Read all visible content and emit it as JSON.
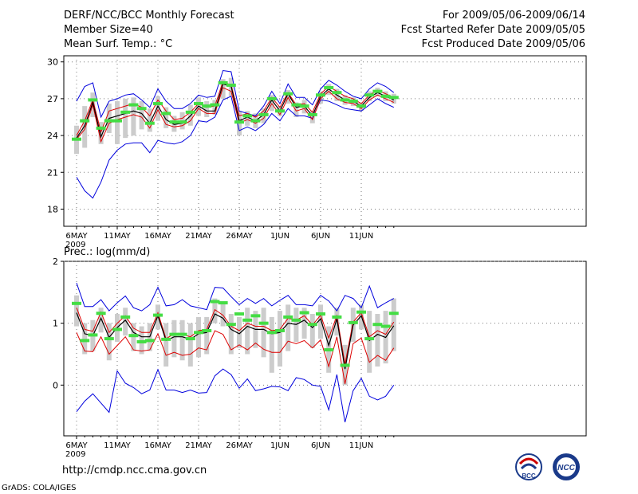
{
  "header": {
    "title": "DERF/NCC/BCC Monthly Forecast",
    "member_size": "Member Size=40",
    "variable": "Mean Surf. Temp.: °C",
    "period": "For 2009/05/06-2009/06/14",
    "started": "Fcst Started Refer Date 2009/05/05",
    "produced": "Fcst Produced Date 2009/05/06"
  },
  "lower_label": "Prec.: log(mm/d)",
  "footer": {
    "url": "http://cmdp.ncc.cma.gov.cn",
    "credit": "GrADS: COLA/IGES",
    "logo_bcc": "BCC",
    "logo_ncc": "NCC"
  },
  "colors": {
    "box": "#cccccc",
    "median": "#44dd44",
    "mean": "#000000",
    "spread": "#dd0000",
    "extreme": "#0000dd"
  },
  "chart_data": [
    {
      "type": "line",
      "title": "Mean Surf. Temp.: °C",
      "x_tick_labels": [
        "6MAY",
        "11MAY",
        "16MAY",
        "21MAY",
        "26MAY",
        "1JUN",
        "6JUN",
        "11JUN"
      ],
      "x_tick_index": [
        0,
        5,
        10,
        15,
        20,
        25,
        30,
        35
      ],
      "year_label": "2009",
      "ylim": [
        16.6,
        30.5
      ],
      "y_ticks": [
        18,
        21,
        24,
        27,
        30
      ],
      "series": [
        {
          "name": "max",
          "values": [
            26.8,
            28.0,
            28.3,
            25.5,
            26.8,
            27.0,
            27.3,
            27.4,
            26.9,
            26.3,
            27.8,
            26.8,
            26.2,
            26.2,
            26.6,
            27.3,
            27.1,
            27.2,
            29.3,
            29.2,
            26.0,
            25.8,
            25.6,
            26.4,
            27.6,
            26.6,
            28.2,
            27.1,
            27.1,
            26.5,
            27.8,
            28.5,
            28.1,
            27.6,
            27.2,
            27.0,
            27.8,
            28.3,
            28.0,
            27.5
          ]
        },
        {
          "name": "upper",
          "values": [
            24.0,
            25.2,
            26.9,
            24.3,
            26.0,
            26.2,
            26.4,
            26.6,
            26.3,
            25.6,
            26.9,
            26.0,
            25.3,
            25.4,
            25.9,
            26.6,
            26.3,
            26.4,
            28.4,
            28.1,
            25.6,
            25.8,
            25.5,
            26.0,
            27.1,
            26.3,
            27.5,
            26.5,
            26.6,
            25.9,
            27.4,
            28.0,
            27.6,
            27.2,
            27.0,
            26.6,
            27.3,
            27.7,
            27.4,
            27.1
          ]
        },
        {
          "name": "mean",
          "values": [
            23.8,
            24.8,
            26.7,
            23.9,
            25.4,
            25.6,
            25.8,
            26.0,
            25.8,
            25.0,
            26.4,
            25.3,
            24.9,
            25.0,
            25.6,
            26.4,
            26.0,
            26.0,
            28.2,
            28.0,
            25.2,
            25.5,
            25.2,
            25.7,
            26.9,
            26.0,
            27.4,
            26.3,
            26.4,
            25.6,
            27.2,
            27.8,
            27.3,
            26.9,
            26.8,
            26.4,
            27.1,
            27.5,
            27.2,
            26.9
          ]
        },
        {
          "name": "lower",
          "values": [
            23.7,
            24.5,
            26.5,
            23.5,
            25.0,
            25.3,
            25.5,
            25.7,
            25.5,
            24.6,
            26.1,
            24.9,
            24.7,
            24.8,
            25.2,
            26.2,
            25.8,
            25.8,
            27.9,
            27.6,
            25.0,
            25.3,
            25.0,
            25.4,
            26.6,
            25.7,
            27.1,
            26.0,
            26.2,
            25.3,
            27.0,
            27.6,
            27.0,
            26.7,
            26.6,
            26.2,
            26.9,
            27.3,
            27.0,
            26.7
          ]
        },
        {
          "name": "min",
          "values": [
            20.6,
            19.5,
            18.9,
            20.2,
            22.0,
            22.8,
            23.3,
            23.4,
            23.4,
            22.6,
            23.6,
            23.4,
            23.3,
            23.5,
            24.0,
            25.2,
            25.1,
            25.5,
            26.9,
            27.2,
            24.4,
            24.7,
            24.4,
            24.9,
            25.8,
            25.2,
            26.2,
            25.6,
            25.6,
            25.4,
            26.9,
            26.8,
            26.5,
            26.2,
            26.1,
            26.0,
            26.5,
            27.0,
            26.6,
            26.3
          ]
        },
        {
          "name": "median",
          "values": [
            23.7,
            25.2,
            26.9,
            24.6,
            25.2,
            25.2,
            25.9,
            26.5,
            26.2,
            25.0,
            26.6,
            25.8,
            25.1,
            25.1,
            25.9,
            26.6,
            26.4,
            26.5,
            28.3,
            28.1,
            25.1,
            25.6,
            25.2,
            25.7,
            27.0,
            26.0,
            27.4,
            26.5,
            26.4,
            25.7,
            27.3,
            27.9,
            27.5,
            26.9,
            26.8,
            26.4,
            27.3,
            27.6,
            27.2,
            27.1
          ]
        },
        {
          "name": "box_low",
          "values": [
            22.5,
            23.0,
            25.5,
            23.3,
            24.2,
            23.3,
            23.8,
            24.0,
            24.5,
            24.3,
            25.2,
            24.6,
            24.3,
            24.5,
            24.8,
            25.6,
            25.5,
            25.7,
            27.0,
            27.2,
            24.0,
            24.8,
            24.6,
            25.0,
            26.0,
            25.6,
            26.6,
            25.5,
            25.8,
            25.0,
            26.6,
            27.3,
            26.8,
            26.5,
            26.4,
            26.0,
            26.8,
            27.2,
            26.8,
            26.6
          ]
        },
        {
          "name": "box_high",
          "values": [
            24.8,
            26.4,
            27.5,
            25.1,
            26.6,
            26.8,
            27.0,
            27.1,
            26.8,
            26.2,
            27.2,
            26.3,
            25.6,
            25.9,
            26.5,
            27.1,
            26.8,
            26.9,
            28.6,
            28.7,
            26.0,
            26.0,
            25.8,
            26.2,
            27.3,
            26.4,
            27.7,
            26.7,
            26.9,
            26.0,
            27.6,
            28.2,
            27.8,
            27.3,
            27.1,
            26.7,
            27.6,
            27.9,
            27.6,
            27.4
          ]
        }
      ]
    },
    {
      "type": "line",
      "title": "Prec.: log(mm/d)",
      "x_tick_labels": [
        "6MAY",
        "11MAY",
        "16MAY",
        "21MAY",
        "26MAY",
        "1JUN",
        "6JUN",
        "11JUN"
      ],
      "x_tick_index": [
        0,
        5,
        10,
        15,
        20,
        25,
        30,
        35
      ],
      "year_label": "2009",
      "ylim": [
        -0.82,
        2.0
      ],
      "y_ticks": [
        0,
        1,
        2
      ],
      "series": [
        {
          "name": "max",
          "values": [
            1.65,
            1.27,
            1.27,
            1.38,
            1.2,
            1.33,
            1.44,
            1.25,
            1.2,
            1.3,
            1.58,
            1.28,
            1.3,
            1.38,
            1.28,
            1.25,
            1.22,
            1.58,
            1.57,
            1.43,
            1.3,
            1.4,
            1.32,
            1.4,
            1.28,
            1.37,
            1.45,
            1.3,
            1.3,
            1.28,
            1.45,
            1.36,
            1.2,
            1.45,
            1.4,
            1.25,
            1.6,
            1.25,
            1.33,
            1.4
          ]
        },
        {
          "name": "upper",
          "values": [
            1.25,
            0.9,
            0.87,
            1.18,
            0.85,
            1.0,
            1.12,
            0.92,
            0.85,
            0.85,
            1.17,
            0.75,
            0.83,
            0.82,
            0.78,
            0.88,
            0.9,
            1.22,
            1.13,
            0.95,
            0.88,
            1.0,
            0.95,
            0.95,
            0.88,
            0.9,
            1.08,
            1.05,
            1.12,
            0.97,
            1.13,
            0.76,
            1.12,
            0.34,
            1.02,
            1.17,
            0.78,
            0.88,
            0.82,
            1.02
          ]
        },
        {
          "name": "mean",
          "values": [
            1.17,
            0.83,
            0.8,
            1.08,
            0.77,
            0.93,
            1.05,
            0.85,
            0.78,
            0.78,
            1.12,
            0.72,
            0.78,
            0.78,
            0.74,
            0.83,
            0.85,
            1.15,
            1.08,
            0.9,
            0.83,
            0.95,
            0.9,
            0.9,
            0.83,
            0.85,
            1.0,
            0.98,
            1.05,
            0.93,
            1.07,
            0.64,
            1.07,
            0.26,
            0.97,
            1.12,
            0.72,
            0.82,
            0.77,
            0.96
          ]
        },
        {
          "name": "lower",
          "values": [
            0.85,
            0.55,
            0.54,
            0.78,
            0.5,
            0.64,
            0.78,
            0.57,
            0.55,
            0.57,
            0.83,
            0.48,
            0.53,
            0.48,
            0.5,
            0.6,
            0.57,
            0.88,
            0.82,
            0.57,
            0.65,
            0.57,
            0.68,
            0.58,
            0.53,
            0.53,
            0.71,
            0.67,
            0.72,
            0.6,
            0.73,
            0.3,
            0.78,
            0.02,
            0.67,
            0.76,
            0.37,
            0.48,
            0.4,
            0.6
          ]
        },
        {
          "name": "min",
          "values": [
            -0.43,
            -0.26,
            -0.14,
            -0.29,
            -0.44,
            0.23,
            0.03,
            -0.04,
            -0.14,
            -0.08,
            0.25,
            -0.08,
            -0.08,
            -0.12,
            -0.08,
            -0.13,
            -0.12,
            0.15,
            0.26,
            0.17,
            -0.05,
            0.1,
            -0.09,
            -0.06,
            -0.02,
            -0.03,
            -0.09,
            0.12,
            0.09,
            0.0,
            -0.02,
            -0.4,
            0.17,
            -0.6,
            -0.09,
            0.11,
            -0.18,
            -0.24,
            -0.18,
            0.0
          ]
        },
        {
          "name": "median",
          "values": [
            1.32,
            0.72,
            0.81,
            1.16,
            0.75,
            0.9,
            1.1,
            0.8,
            0.7,
            0.72,
            1.13,
            0.74,
            0.82,
            0.82,
            0.75,
            0.85,
            0.88,
            1.35,
            1.33,
            0.98,
            1.15,
            1.05,
            1.12,
            1.0,
            0.85,
            0.88,
            1.1,
            1.05,
            1.17,
            0.98,
            1.15,
            0.57,
            1.1,
            0.32,
            1.01,
            1.18,
            0.75,
            0.98,
            0.95,
            1.16
          ]
        },
        {
          "name": "box_low",
          "values": [
            0.95,
            0.5,
            0.55,
            0.85,
            0.4,
            0.7,
            0.8,
            0.55,
            0.5,
            0.55,
            0.9,
            0.3,
            0.45,
            0.4,
            0.3,
            0.45,
            0.5,
            1.0,
            0.95,
            0.5,
            0.6,
            0.5,
            0.6,
            0.45,
            0.2,
            0.3,
            0.55,
            0.7,
            0.75,
            0.6,
            0.75,
            0.2,
            0.8,
            0.0,
            0.7,
            0.9,
            0.2,
            0.3,
            0.35,
            0.55
          ]
        },
        {
          "name": "box_high",
          "values": [
            1.45,
            1.0,
            1.05,
            1.25,
            1.0,
            1.15,
            1.25,
            1.0,
            0.95,
            1.0,
            1.3,
            1.0,
            1.05,
            1.05,
            1.0,
            1.1,
            1.1,
            1.4,
            1.35,
            1.15,
            1.1,
            1.25,
            1.2,
            1.25,
            1.1,
            1.2,
            1.3,
            1.25,
            1.25,
            1.15,
            1.3,
            0.95,
            1.25,
            0.65,
            1.25,
            1.3,
            1.2,
            1.15,
            1.2,
            1.4
          ]
        }
      ]
    }
  ]
}
